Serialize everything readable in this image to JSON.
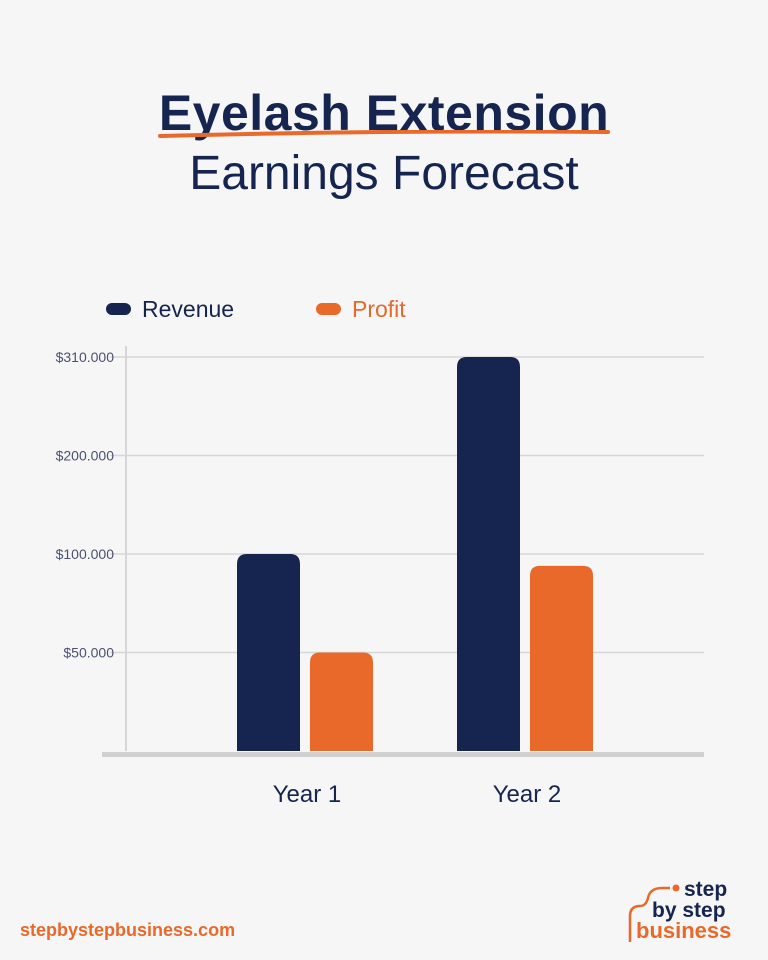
{
  "title_line1": "Eyelash Extension",
  "title_line2": "Earnings Forecast",
  "footer_url": "stepbystepbusiness.com",
  "logo_text": [
    "step",
    "by step",
    "business"
  ],
  "colors": {
    "revenue": "#16254f",
    "profit": "#e8692a",
    "background": "#f6f6f6",
    "grid": "#d6d6d6"
  },
  "chart_data": {
    "type": "bar",
    "categories": [
      "Year 1",
      "Year 2"
    ],
    "series": [
      {
        "name": "Revenue",
        "values": [
          100000,
          310000
        ]
      },
      {
        "name": "Profit",
        "values": [
          50000,
          94000
        ]
      }
    ],
    "y_ticks": [
      50000,
      100000,
      200000,
      310000
    ],
    "y_tick_labels": [
      "$50.000",
      "$100.000",
      "$200.000",
      "$310.000"
    ],
    "y_scale": "non-linear (ticks equally spaced)",
    "ylim": [
      0,
      310000
    ],
    "grid": true,
    "legend_placement": "top-left"
  }
}
